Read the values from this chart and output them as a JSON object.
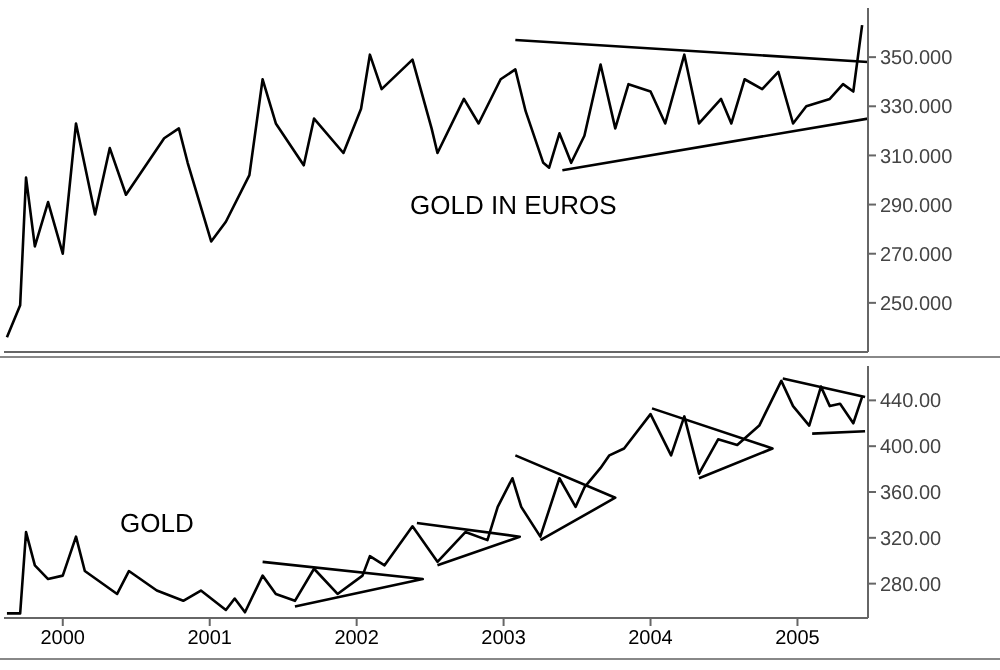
{
  "chart_data": [
    {
      "type": "line",
      "annotations": [
        "GOLD IN EUROS"
      ],
      "xlim": [
        1999.6,
        2005.48
      ],
      "xticks": [
        2000,
        2001,
        2002,
        2003,
        2004,
        2005
      ],
      "ylim": [
        230,
        370
      ],
      "yticks": [
        {
          "value": 250,
          "label": "250.000"
        },
        {
          "value": 270,
          "label": "270.000"
        },
        {
          "value": 290,
          "label": "290.000"
        },
        {
          "value": 310,
          "label": "310.000"
        },
        {
          "value": 330,
          "label": "330.000"
        },
        {
          "value": 350,
          "label": "350.000"
        }
      ],
      "tick_labels": "y",
      "marker": "none",
      "line_style": "solid",
      "series": [
        {
          "color": "#000000",
          "x": [
            1999.62,
            1999.71,
            1999.75,
            1999.81,
            1999.9,
            2000.0,
            2000.09,
            2000.22,
            2000.32,
            2000.43,
            2000.69,
            2000.79,
            2000.85,
            2001.01,
            2001.11,
            2001.27,
            2001.36,
            2001.45,
            2001.64,
            2001.71,
            2001.91,
            2002.03,
            2002.09,
            2002.17,
            2002.38,
            2002.51,
            2002.55,
            2002.73,
            2002.83,
            2002.98,
            2003.08,
            2003.15,
            2003.27,
            2003.31,
            2003.38,
            2003.46,
            2003.55,
            2003.66,
            2003.76,
            2003.85,
            2004.0,
            2004.1,
            2004.23,
            2004.33,
            2004.48,
            2004.55,
            2004.64,
            2004.76,
            2004.87,
            2004.97,
            2005.06,
            2005.22,
            2005.31,
            2005.38,
            2005.44
          ],
          "values": [
            236,
            249,
            301,
            273,
            291,
            270,
            323,
            286,
            313,
            294,
            317,
            321,
            307,
            275,
            283,
            302,
            341,
            323,
            306,
            325,
            311,
            329,
            351,
            337,
            349,
            321,
            311,
            333,
            323,
            341,
            345,
            328,
            307,
            305,
            319,
            307,
            318,
            347,
            321,
            339,
            336,
            323,
            351,
            323,
            333,
            323,
            341,
            337,
            344,
            323,
            330,
            333,
            339,
            336,
            363
          ]
        },
        {
          "color": "#000000",
          "x": [
            2003.08,
            2005.48
          ],
          "values": [
            357,
            348
          ]
        },
        {
          "color": "#000000",
          "x": [
            2003.4,
            2005.48
          ],
          "values": [
            304,
            325
          ]
        }
      ]
    },
    {
      "type": "line",
      "annotations": [
        "GOLD"
      ],
      "xlim": [
        1999.6,
        2005.48
      ],
      "xticks": [
        2000,
        2001,
        2002,
        2003,
        2004,
        2005
      ],
      "ylim": [
        250,
        470
      ],
      "yticks": [
        {
          "value": 280,
          "label": "280.00"
        },
        {
          "value": 320,
          "label": "320.00"
        },
        {
          "value": 360,
          "label": "360.00"
        },
        {
          "value": 400,
          "label": "400.00"
        },
        {
          "value": 440,
          "label": "440.00"
        }
      ],
      "marker": "none",
      "line_style": "solid",
      "series": [
        {
          "color": "#000000",
          "x": [
            1999.62,
            1999.71,
            1999.75,
            1999.81,
            1999.9,
            2000.0,
            2000.09,
            2000.15,
            2000.37,
            2000.45,
            2000.64,
            2000.82,
            2000.94,
            2001.11,
            2001.17,
            2001.24,
            2001.36,
            2001.45,
            2001.58,
            2001.71,
            2001.87,
            2002.04,
            2002.09,
            2002.19,
            2002.38,
            2002.55,
            2002.74,
            2002.89,
            2002.96,
            2003.06,
            2003.12,
            2003.25,
            2003.38,
            2003.49,
            2003.55,
            2003.66,
            2003.72,
            2003.82,
            2004.0,
            2004.14,
            2004.23,
            2004.33,
            2004.46,
            2004.59,
            2004.74,
            2004.89,
            2004.97,
            2005.08,
            2005.16,
            2005.22,
            2005.29,
            2005.38,
            2005.44
          ],
          "values": [
            254,
            254,
            325,
            296,
            284,
            287,
            321,
            291,
            271,
            291,
            274,
            265,
            274,
            257,
            267,
            255,
            287,
            271,
            265,
            293,
            271,
            287,
            304,
            296,
            330,
            299,
            325,
            318,
            347,
            372,
            347,
            321,
            372,
            347,
            364,
            381,
            392,
            398,
            428,
            392,
            426,
            376,
            406,
            401,
            418,
            457,
            435,
            418,
            452,
            435,
            437,
            420,
            443
          ]
        },
        {
          "color": "#000000",
          "x": [
            2001.36,
            2002.45,
            2001.58
          ],
          "values": [
            299,
            284,
            260
          ]
        },
        {
          "color": "#000000",
          "x": [
            2002.41,
            2003.11,
            2002.55
          ],
          "values": [
            333,
            321,
            296
          ]
        },
        {
          "color": "#000000",
          "x": [
            2003.08,
            2003.76,
            2003.25
          ],
          "values": [
            392,
            355,
            318
          ]
        },
        {
          "color": "#000000",
          "x": [
            2004.01,
            2004.83,
            2004.33
          ],
          "values": [
            433,
            398,
            372
          ]
        },
        {
          "color": "#000000",
          "x": [
            2004.9,
            2005.46
          ],
          "values": [
            459,
            443
          ]
        },
        {
          "color": "#000000",
          "x": [
            2005.1,
            2005.46
          ],
          "values": [
            411,
            413
          ]
        }
      ]
    }
  ]
}
